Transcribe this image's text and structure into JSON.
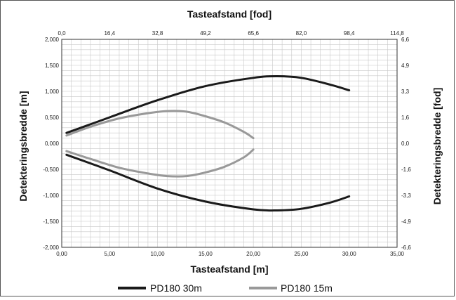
{
  "chart_data": {
    "type": "line",
    "top_axis_title": "Tasteafstand [fod]",
    "xlabel": "Tasteafstand [m]",
    "ylabel": "Detekteringsbredde [m]",
    "y2label": "Detekteringsbredde [fod]",
    "xlim": [
      0,
      35
    ],
    "ylim": [
      -2,
      2
    ],
    "grid": true,
    "legend_position": "bottom",
    "x_ticks": [
      "0,00",
      "5,00",
      "10,00",
      "15,00",
      "20,00",
      "25,00",
      "30,00",
      "35,00"
    ],
    "x_top_ticks": [
      "0,0",
      "16,4",
      "32,8",
      "49,2",
      "65,6",
      "82,0",
      "98,4",
      "114,8"
    ],
    "y_ticks": [
      "2,000",
      "1,500",
      "1,000",
      "0,500",
      "0,000",
      "-0,500",
      "-1,000",
      "-1,500",
      "-2,000"
    ],
    "y_right_ticks": [
      "6,6",
      "4,9",
      "3,3",
      "1,6",
      "0,0",
      "-1,6",
      "-3,3",
      "-4,9",
      "-6,6"
    ],
    "series": [
      {
        "name": "PD180 30m",
        "color": "#1a1a1a",
        "upper": [
          [
            0.5,
            0.2
          ],
          [
            5,
            0.5
          ],
          [
            10,
            0.83
          ],
          [
            15,
            1.1
          ],
          [
            20,
            1.26
          ],
          [
            22.5,
            1.29
          ],
          [
            25,
            1.26
          ],
          [
            28,
            1.13
          ],
          [
            30,
            1.02
          ]
        ],
        "lower": [
          [
            0.5,
            -0.22
          ],
          [
            5,
            -0.52
          ],
          [
            10,
            -0.87
          ],
          [
            15,
            -1.12
          ],
          [
            20,
            -1.27
          ],
          [
            22.5,
            -1.29
          ],
          [
            25,
            -1.26
          ],
          [
            28,
            -1.14
          ],
          [
            30,
            -1.02
          ]
        ]
      },
      {
        "name": "PD180 15m",
        "color": "#999999",
        "upper": [
          [
            0.5,
            0.15
          ],
          [
            3,
            0.32
          ],
          [
            6,
            0.48
          ],
          [
            9,
            0.58
          ],
          [
            11,
            0.62
          ],
          [
            13,
            0.61
          ],
          [
            15,
            0.52
          ],
          [
            17,
            0.4
          ],
          [
            19,
            0.22
          ],
          [
            20,
            0.1
          ]
        ],
        "lower": [
          [
            0.5,
            -0.15
          ],
          [
            3,
            -0.3
          ],
          [
            6,
            -0.47
          ],
          [
            9,
            -0.58
          ],
          [
            11,
            -0.63
          ],
          [
            13,
            -0.63
          ],
          [
            15,
            -0.56
          ],
          [
            17,
            -0.45
          ],
          [
            19,
            -0.27
          ],
          [
            20,
            -0.12
          ]
        ]
      }
    ]
  }
}
